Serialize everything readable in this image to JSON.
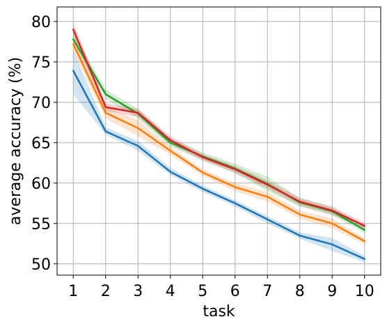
{
  "chart_data": {
    "type": "line",
    "xlabel": "task",
    "ylabel": "average accuracy (%)",
    "x": [
      1,
      2,
      3,
      4,
      5,
      6,
      7,
      8,
      9,
      10
    ],
    "xlim": [
      0.5,
      10.5
    ],
    "ylim": [
      48.6,
      81.8
    ],
    "xticks": [
      "1",
      "2",
      "3",
      "4",
      "5",
      "6",
      "7",
      "8",
      "9",
      "10"
    ],
    "yticks": [
      "50",
      "55",
      "60",
      "65",
      "70",
      "75",
      "80"
    ],
    "ytick_values": [
      50,
      55,
      60,
      65,
      70,
      75,
      80
    ],
    "grid": true,
    "legend": "none",
    "series": [
      {
        "color": "#1f77b4",
        "values": [
          73.9,
          66.4,
          64.6,
          61.4,
          59.3,
          57.5,
          55.5,
          53.5,
          52.4,
          50.6
        ],
        "lower": [
          71.0,
          66.0,
          64.0,
          61.0,
          58.9,
          57.1,
          55.0,
          53.1,
          51.6,
          50.2
        ],
        "upper": [
          76.5,
          66.9,
          65.2,
          61.9,
          59.7,
          57.9,
          55.9,
          53.9,
          53.2,
          51.0
        ]
      },
      {
        "color": "#ff7f0e",
        "values": [
          77.2,
          68.7,
          66.8,
          64.0,
          61.3,
          59.5,
          58.3,
          56.1,
          55.0,
          52.8
        ],
        "lower": [
          76.3,
          68.0,
          65.8,
          63.5,
          60.9,
          59.0,
          57.7,
          55.6,
          54.4,
          52.4
        ],
        "upper": [
          78.1,
          69.4,
          67.8,
          64.5,
          61.7,
          60.0,
          58.9,
          56.6,
          55.6,
          53.2
        ]
      },
      {
        "color": "#2ca02c",
        "values": [
          77.8,
          71.0,
          68.6,
          65.0,
          63.3,
          61.8,
          59.9,
          57.6,
          56.5,
          54.2
        ],
        "lower": [
          77.0,
          70.4,
          68.0,
          64.5,
          62.8,
          61.2,
          59.0,
          57.1,
          56.0,
          53.8
        ],
        "upper": [
          78.6,
          71.6,
          69.2,
          65.5,
          63.8,
          62.4,
          60.8,
          58.1,
          57.0,
          54.6
        ]
      },
      {
        "color": "#d62728",
        "values": [
          79.0,
          69.4,
          68.7,
          65.3,
          63.2,
          61.7,
          59.8,
          57.7,
          56.6,
          54.7
        ],
        "lower": [
          78.3,
          68.9,
          68.2,
          64.8,
          62.8,
          61.3,
          59.3,
          57.2,
          56.1,
          54.3
        ],
        "upper": [
          79.9,
          69.9,
          69.2,
          65.8,
          63.6,
          62.1,
          60.3,
          58.2,
          57.1,
          55.1
        ]
      }
    ]
  }
}
